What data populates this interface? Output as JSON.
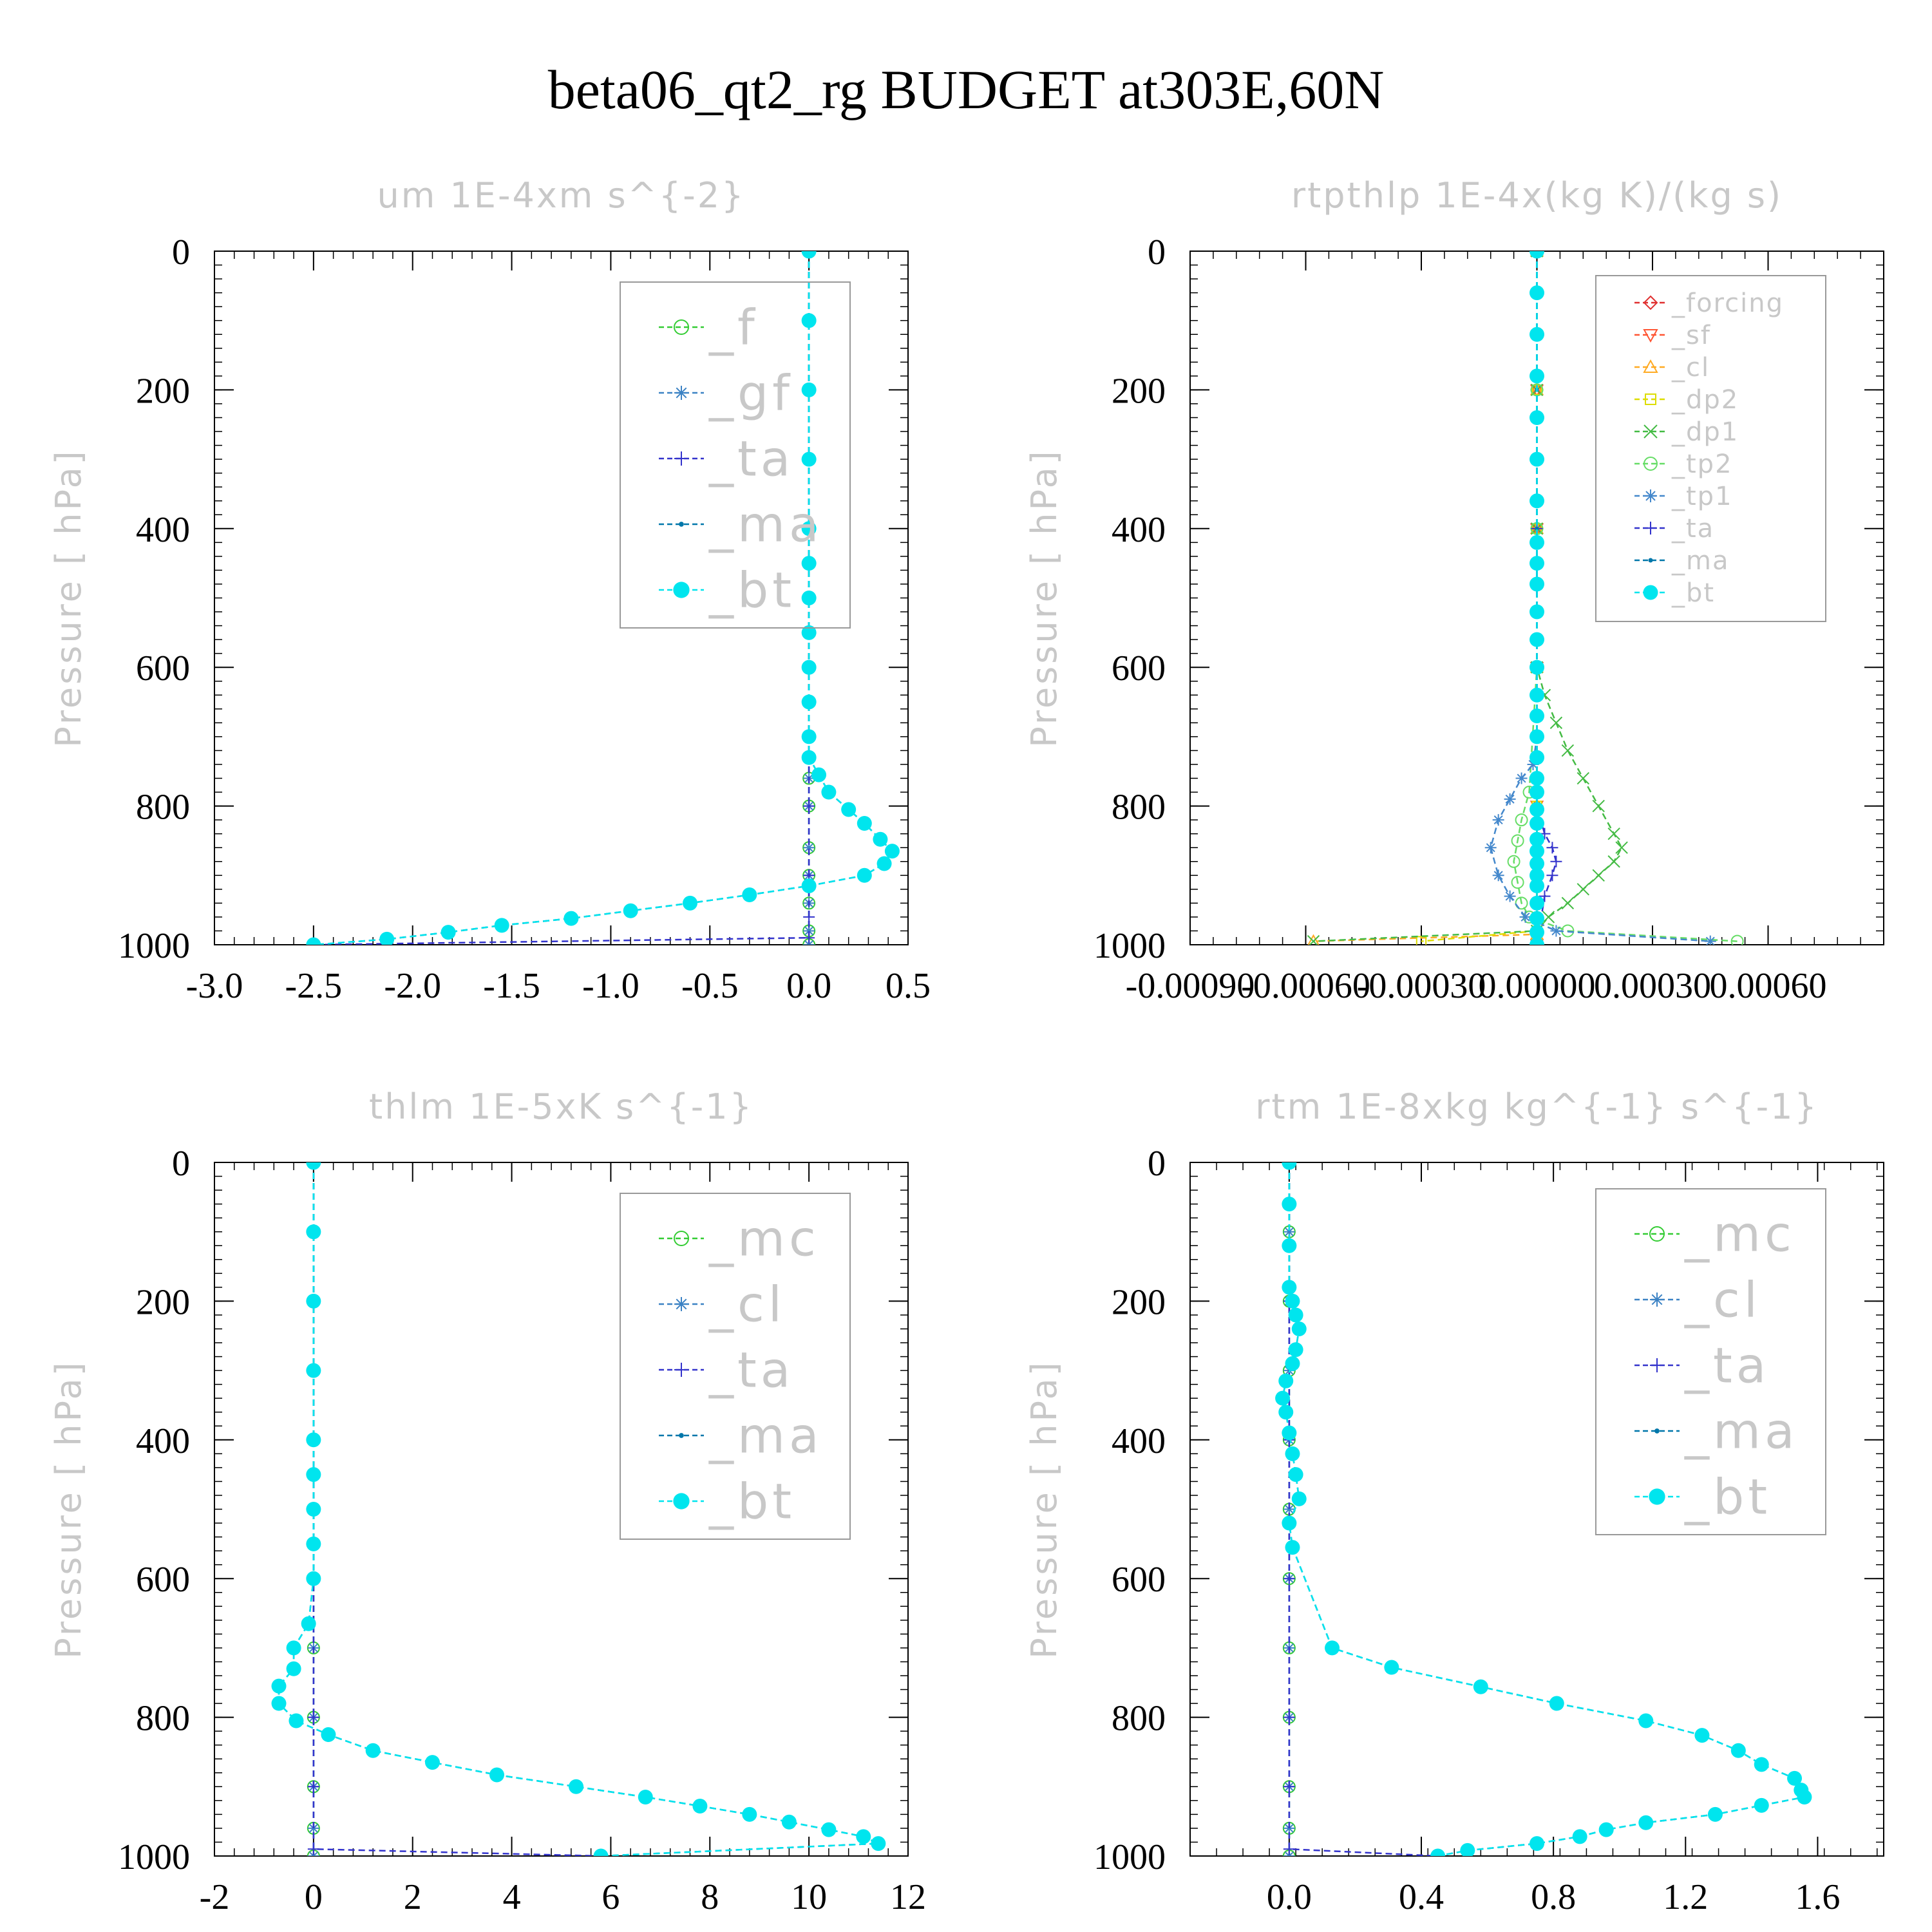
{
  "title": "beta06_qt2_rg  BUDGET at303E,60N",
  "chart_data": [
    {
      "type": "line",
      "title": "um  1E-4xm s^{-2}",
      "ylabel": "Pressure [ hPa]",
      "xlim": [
        -3.0,
        0.5
      ],
      "ylim": [
        0,
        1000
      ],
      "xticks": [
        "-3.0",
        "-2.5",
        "-2.0",
        "-1.5",
        "-1.0",
        "-0.5",
        "0.0",
        "0.5"
      ],
      "yticks": [
        "0",
        "200",
        "400",
        "600",
        "800",
        "1000"
      ],
      "legend_position": "top-right",
      "legend_scale": "large",
      "series": [
        {
          "name": "_f",
          "color": "#33cc33",
          "marker": "circle-open",
          "x": [
            0,
            0,
            0,
            0,
            0,
            0,
            0,
            0,
            0,
            0,
            0,
            0,
            0,
            0,
            0
          ],
          "y": [
            0,
            100,
            200,
            300,
            400,
            500,
            600,
            700,
            760,
            800,
            860,
            900,
            940,
            980,
            1000
          ]
        },
        {
          "name": "_gf",
          "color": "#3b82c4",
          "marker": "asterisk",
          "x": [
            0,
            0,
            0,
            0,
            0,
            0,
            0,
            0,
            0,
            0,
            0,
            0,
            0,
            0,
            0
          ],
          "y": [
            0,
            100,
            200,
            300,
            400,
            500,
            600,
            700,
            760,
            800,
            860,
            900,
            940,
            980,
            1000
          ]
        },
        {
          "name": "_ta",
          "color": "#3333cc",
          "marker": "plus",
          "x": [
            0,
            0,
            0,
            0,
            0,
            0,
            0,
            0,
            -2.5
          ],
          "y": [
            0,
            200,
            400,
            600,
            800,
            900,
            960,
            990,
            1000
          ]
        },
        {
          "name": "_ma",
          "color": "#0077aa",
          "marker": "dot",
          "x": [
            0,
            0,
            0,
            0,
            0,
            0,
            0,
            0,
            0,
            0,
            0,
            0,
            0.05,
            0.1,
            0.2,
            0.28,
            0.36,
            0.42,
            0.38,
            0.28,
            0,
            -0.3,
            -0.6,
            -0.9,
            -1.2,
            -1.55,
            -1.82,
            -2.13,
            -2.5
          ],
          "y": [
            0,
            100,
            200,
            300,
            400,
            450,
            500,
            550,
            600,
            650,
            700,
            730,
            755,
            780,
            805,
            825,
            848,
            865,
            883,
            900,
            915,
            928,
            940,
            951,
            962,
            972,
            982,
            992,
            1000
          ]
        },
        {
          "name": "_bt",
          "color": "#00e5ee",
          "marker": "disc",
          "x": [
            0,
            0,
            0,
            0,
            0,
            0,
            0,
            0,
            0,
            0,
            0,
            0,
            0.05,
            0.1,
            0.2,
            0.28,
            0.36,
            0.42,
            0.38,
            0.28,
            0,
            -0.3,
            -0.6,
            -0.9,
            -1.2,
            -1.55,
            -1.82,
            -2.13,
            -2.5
          ],
          "y": [
            0,
            100,
            200,
            300,
            400,
            450,
            500,
            550,
            600,
            650,
            700,
            730,
            755,
            780,
            805,
            825,
            848,
            865,
            883,
            900,
            915,
            928,
            940,
            951,
            962,
            972,
            982,
            992,
            1000
          ]
        }
      ]
    },
    {
      "type": "line",
      "title": "rtpthlp  1E-4x(kg K)/(kg s)",
      "ylabel": "Pressure [ hPa]",
      "xlim": [
        -0.0009,
        0.0009
      ],
      "ylim": [
        0,
        1000
      ],
      "xticks": [
        "-0.00090",
        "-0.00060",
        "-0.00030",
        "0.00000",
        "0.00030",
        "0.00060"
      ],
      "yticks": [
        "0",
        "200",
        "400",
        "600",
        "800",
        "1000"
      ],
      "legend_position": "top-right",
      "legend_scale": "small",
      "series": [
        {
          "name": "_forcing",
          "color": "#e03030",
          "marker": "diamond",
          "x": [
            0,
            0,
            0,
            0,
            0,
            0
          ],
          "y": [
            0,
            200,
            400,
            600,
            800,
            1000
          ]
        },
        {
          "name": "_sf",
          "color": "#ff5533",
          "marker": "triangle-down",
          "x": [
            0,
            0,
            0,
            0,
            0,
            0
          ],
          "y": [
            0,
            200,
            400,
            600,
            800,
            1000
          ]
        },
        {
          "name": "_cl",
          "color": "#ffaa22",
          "marker": "triangle-up",
          "x": [
            0,
            0,
            0,
            0,
            0,
            0,
            -0.00058
          ],
          "y": [
            0,
            200,
            400,
            600,
            800,
            985,
            995
          ]
        },
        {
          "name": "_dp2",
          "color": "#dddd00",
          "marker": "square",
          "x": [
            0,
            0,
            0,
            0,
            0,
            0,
            -0.0003
          ],
          "y": [
            0,
            200,
            400,
            600,
            800,
            980,
            995
          ]
        },
        {
          "name": "_dp1",
          "color": "#44bb44",
          "marker": "cross",
          "x": [
            0,
            0,
            0,
            0,
            2e-05,
            5e-05,
            8e-05,
            0.00012,
            0.00016,
            0.0002,
            0.00022,
            0.0002,
            0.00016,
            0.00012,
            8e-05,
            3e-05,
            0,
            -0.00058
          ],
          "y": [
            0,
            200,
            400,
            600,
            640,
            680,
            720,
            760,
            800,
            840,
            860,
            880,
            900,
            920,
            940,
            960,
            980,
            995
          ]
        },
        {
          "name": "_tp2",
          "color": "#66dd66",
          "marker": "circle-open",
          "x": [
            0,
            0,
            0,
            0,
            -2e-05,
            -4e-05,
            -5e-05,
            -6e-05,
            -5e-05,
            -4e-05,
            -2e-05,
            8e-05,
            0.00052
          ],
          "y": [
            0,
            200,
            400,
            600,
            780,
            820,
            850,
            880,
            910,
            940,
            960,
            980,
            995
          ]
        },
        {
          "name": "_tp1",
          "color": "#4488cc",
          "marker": "asterisk",
          "x": [
            0,
            0,
            0,
            -1e-05,
            -4e-05,
            -7e-05,
            -0.0001,
            -0.00012,
            -0.0001,
            -7e-05,
            -3e-05,
            5e-05,
            0.00045
          ],
          "y": [
            0,
            600,
            700,
            740,
            760,
            790,
            820,
            860,
            900,
            930,
            960,
            980,
            995
          ]
        },
        {
          "name": "_ta",
          "color": "#3333cc",
          "marker": "plus",
          "x": [
            0,
            0,
            0,
            0,
            2e-05,
            4e-05,
            5e-05,
            4e-05,
            2e-05,
            0
          ],
          "y": [
            0,
            400,
            600,
            800,
            840,
            860,
            880,
            900,
            930,
            1000
          ]
        },
        {
          "name": "_ma",
          "color": "#0077aa",
          "marker": "dot",
          "x": [
            0,
            0,
            0,
            0,
            0,
            0
          ],
          "y": [
            0,
            200,
            400,
            600,
            800,
            1000
          ]
        },
        {
          "name": "_bt",
          "color": "#00e5ee",
          "marker": "disc",
          "x": [
            0,
            0,
            0,
            0,
            0,
            0,
            0,
            0,
            0,
            0,
            0,
            0,
            0,
            0,
            0,
            0,
            0,
            0,
            0,
            0,
            0,
            0,
            0,
            0,
            0,
            0,
            0,
            0,
            0,
            0
          ],
          "y": [
            0,
            60,
            120,
            180,
            240,
            300,
            360,
            420,
            450,
            480,
            520,
            560,
            600,
            640,
            670,
            700,
            730,
            760,
            780,
            805,
            825,
            848,
            865,
            883,
            900,
            915,
            940,
            962,
            982,
            1000
          ]
        }
      ]
    },
    {
      "type": "line",
      "title": "thlm  1E-5xK s^{-1}",
      "ylabel": "Pressure [ hPa]",
      "xlim": [
        -2,
        12
      ],
      "ylim": [
        0,
        1000
      ],
      "xticks": [
        "-2",
        "0",
        "2",
        "4",
        "6",
        "8",
        "10",
        "12"
      ],
      "yticks": [
        "0",
        "200",
        "400",
        "600",
        "800",
        "1000"
      ],
      "legend_position": "top-right",
      "legend_scale": "large",
      "series": [
        {
          "name": "_mc",
          "color": "#33cc33",
          "marker": "circle-open",
          "x": [
            0,
            0,
            0,
            0,
            0,
            0,
            0,
            0,
            0,
            0,
            0,
            0
          ],
          "y": [
            0,
            100,
            200,
            300,
            400,
            500,
            600,
            700,
            800,
            900,
            960,
            1000
          ]
        },
        {
          "name": "_cl",
          "color": "#3b82c4",
          "marker": "asterisk",
          "x": [
            0,
            0,
            0,
            0,
            0,
            0,
            0,
            0,
            0,
            0,
            0,
            0
          ],
          "y": [
            0,
            100,
            200,
            300,
            400,
            500,
            600,
            700,
            800,
            900,
            960,
            1000
          ]
        },
        {
          "name": "_ta",
          "color": "#3333cc",
          "marker": "plus",
          "x": [
            0,
            0,
            0,
            0,
            0,
            0,
            0,
            5.8
          ],
          "y": [
            0,
            200,
            400,
            600,
            800,
            900,
            990,
            1000
          ]
        },
        {
          "name": "_ma",
          "color": "#0077aa",
          "marker": "dot",
          "x": [
            0,
            0,
            0,
            0,
            0,
            0,
            0,
            0,
            0,
            -0.1,
            -0.4,
            -0.4,
            -0.7,
            -0.7,
            -0.35,
            0.3,
            1.2,
            2.4,
            3.7,
            5.3,
            6.7,
            7.8,
            8.8,
            9.6,
            10.4,
            11.1,
            11.4,
            5.8
          ],
          "y": [
            0,
            100,
            200,
            300,
            400,
            450,
            500,
            550,
            600,
            665,
            700,
            730,
            755,
            780,
            805,
            825,
            848,
            865,
            883,
            900,
            915,
            928,
            940,
            951,
            962,
            972,
            982,
            1000
          ]
        },
        {
          "name": "_bt",
          "color": "#00e5ee",
          "marker": "disc",
          "x": [
            0,
            0,
            0,
            0,
            0,
            0,
            0,
            0,
            0,
            -0.1,
            -0.4,
            -0.4,
            -0.7,
            -0.7,
            -0.35,
            0.3,
            1.2,
            2.4,
            3.7,
            5.3,
            6.7,
            7.8,
            8.8,
            9.6,
            10.4,
            11.1,
            11.4,
            5.8
          ],
          "y": [
            0,
            100,
            200,
            300,
            400,
            450,
            500,
            550,
            600,
            665,
            700,
            730,
            755,
            780,
            805,
            825,
            848,
            865,
            883,
            900,
            915,
            928,
            940,
            951,
            962,
            972,
            982,
            1000
          ]
        }
      ]
    },
    {
      "type": "line",
      "title": "rtm  1E-8xkg kg^{-1} s^{-1}",
      "ylabel": "Pressure [ hPa]",
      "xlim": [
        -0.3,
        1.8
      ],
      "ylim": [
        0,
        1000
      ],
      "xticks": [
        "0.0",
        "0.4",
        "0.8",
        "1.2",
        "1.6"
      ],
      "yticks": [
        "0",
        "200",
        "400",
        "600",
        "800",
        "1000"
      ],
      "legend_position": "top-right",
      "legend_scale": "large",
      "series": [
        {
          "name": "_mc",
          "color": "#33cc33",
          "marker": "circle-open",
          "x": [
            0,
            0,
            0,
            0,
            0,
            0,
            0,
            0,
            0,
            0,
            0,
            0
          ],
          "y": [
            0,
            100,
            200,
            300,
            400,
            500,
            600,
            700,
            800,
            900,
            960,
            1000
          ]
        },
        {
          "name": "_cl",
          "color": "#3b82c4",
          "marker": "asterisk",
          "x": [
            0,
            0,
            0,
            0,
            0,
            0,
            0,
            0,
            0,
            0,
            0,
            0
          ],
          "y": [
            0,
            100,
            200,
            300,
            400,
            500,
            600,
            700,
            800,
            900,
            960,
            1000
          ]
        },
        {
          "name": "_ta",
          "color": "#3333cc",
          "marker": "plus",
          "x": [
            0,
            0,
            0,
            0,
            0,
            0,
            0,
            0.45
          ],
          "y": [
            0,
            200,
            400,
            600,
            800,
            900,
            990,
            1000
          ]
        },
        {
          "name": "_ma",
          "color": "#0077aa",
          "marker": "dot",
          "x": [
            0,
            0,
            0,
            0,
            0.01,
            0.02,
            0.03,
            0.02,
            0.01,
            -0.01,
            -0.02,
            -0.01,
            0,
            0.01,
            0.02,
            0.03,
            0,
            0.01,
            0.13,
            0.31,
            0.58,
            0.81,
            1.08,
            1.25,
            1.36,
            1.43,
            1.53,
            1.55,
            1.56,
            1.43,
            1.29,
            1.08,
            0.96,
            0.88,
            0.75,
            0.54,
            0.45
          ],
          "y": [
            0,
            60,
            120,
            180,
            200,
            220,
            240,
            270,
            290,
            315,
            340,
            360,
            390,
            420,
            450,
            485,
            520,
            555,
            700,
            728,
            756,
            780,
            805,
            826,
            848,
            868,
            888,
            905,
            915,
            927,
            940,
            952,
            962,
            972,
            982,
            992,
            1000
          ]
        },
        {
          "name": "_bt",
          "color": "#00e5ee",
          "marker": "disc",
          "x": [
            0,
            0,
            0,
            0,
            0.01,
            0.02,
            0.03,
            0.02,
            0.01,
            -0.01,
            -0.02,
            -0.01,
            0,
            0.01,
            0.02,
            0.03,
            0,
            0.01,
            0.13,
            0.31,
            0.58,
            0.81,
            1.08,
            1.25,
            1.36,
            1.43,
            1.53,
            1.55,
            1.56,
            1.43,
            1.29,
            1.08,
            0.96,
            0.88,
            0.75,
            0.54,
            0.45
          ],
          "y": [
            0,
            60,
            120,
            180,
            200,
            220,
            240,
            270,
            290,
            315,
            340,
            360,
            390,
            420,
            450,
            485,
            520,
            555,
            700,
            728,
            756,
            780,
            805,
            826,
            848,
            868,
            888,
            905,
            915,
            927,
            940,
            952,
            962,
            972,
            982,
            992,
            1000
          ]
        }
      ]
    }
  ]
}
